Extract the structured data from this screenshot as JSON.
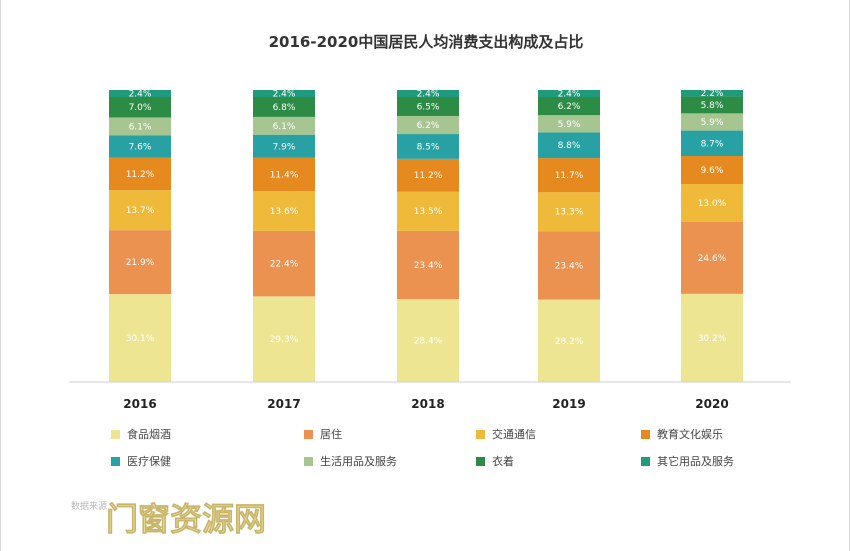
{
  "chart_data": {
    "type": "bar",
    "stacked": true,
    "title": "2016-2020中国居民人均消费支出构成及占比",
    "categories": [
      "2016",
      "2017",
      "2018",
      "2019",
      "2020"
    ],
    "series": [
      {
        "name": "食品烟酒",
        "color": "#ede592",
        "values": [
          30.1,
          29.3,
          28.4,
          28.2,
          30.2
        ],
        "labels": [
          "30.1%",
          "29.3%",
          "28.4%",
          "28.2%",
          "30.2%"
        ]
      },
      {
        "name": "居住",
        "color": "#eb9251",
        "values": [
          21.9,
          22.4,
          23.4,
          23.4,
          24.6
        ],
        "labels": [
          "21.9%",
          "22.4%",
          "23.4%",
          "23.4%",
          "24.6%"
        ]
      },
      {
        "name": "交通通信",
        "color": "#efb93a",
        "values": [
          13.7,
          13.6,
          13.5,
          13.3,
          13.0
        ],
        "labels": [
          "13.7%",
          "13.6%",
          "13.5%",
          "13.3%",
          "13.0%"
        ]
      },
      {
        "name": "教育文化娱乐",
        "color": "#e68a1f",
        "values": [
          11.2,
          11.4,
          11.2,
          11.7,
          9.6
        ],
        "labels": [
          "11.2%",
          "11.4%",
          "11.2%",
          "11.7%",
          "9.6%"
        ]
      },
      {
        "name": "医疗保健",
        "color": "#27a1a3",
        "values": [
          7.6,
          7.9,
          8.5,
          8.8,
          8.7
        ],
        "labels": [
          "7.6%",
          "7.9%",
          "8.5%",
          "8.8%",
          "8.7%"
        ]
      },
      {
        "name": "生活用品及服务",
        "color": "#a6c591",
        "values": [
          6.1,
          6.1,
          6.2,
          5.9,
          5.9
        ],
        "labels": [
          "6.1%",
          "6.1%",
          "6.2%",
          "5.9%",
          "5.9%"
        ]
      },
      {
        "name": "衣着",
        "color": "#2c8c46",
        "values": [
          7.0,
          6.8,
          6.5,
          6.2,
          5.8
        ],
        "labels": [
          "7.0%",
          "6.8%",
          "6.5%",
          "6.2%",
          "5.8%"
        ]
      },
      {
        "name": "其它用品及服务",
        "color": "#1f9a7a",
        "values": [
          2.4,
          2.4,
          2.4,
          2.4,
          2.2
        ],
        "labels": [
          "2.4%",
          "2.4%",
          "2.4%",
          "2.4%",
          "2.2%"
        ]
      }
    ],
    "ylim": [
      0,
      100
    ],
    "xlabel": "",
    "ylabel": "",
    "grid": false,
    "legend_position": "bottom"
  },
  "watermark": "门窗资源网",
  "source_note": "数据来源"
}
